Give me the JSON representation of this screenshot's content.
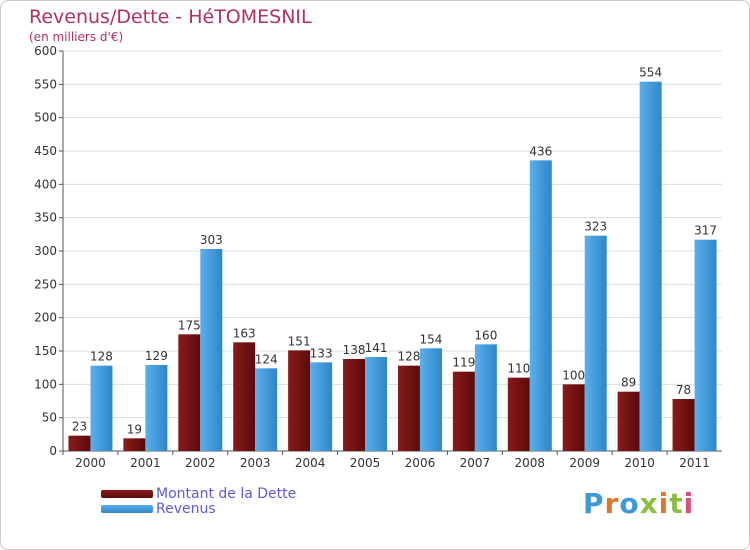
{
  "chart_data": {
    "type": "bar",
    "title": "Revenus/Dette - HéTOMESNIL",
    "subtitle": "(en milliers d'€)",
    "categories": [
      "2000",
      "2001",
      "2002",
      "2003",
      "2004",
      "2005",
      "2006",
      "2007",
      "2008",
      "2009",
      "2010",
      "2011"
    ],
    "series": [
      {
        "name": "Montant de la Dette",
        "color": "#7a1414",
        "values": [
          23,
          19,
          175,
          163,
          151,
          138,
          128,
          119,
          110,
          100,
          89,
          78
        ]
      },
      {
        "name": "Revenus",
        "color": "#4ea6e6",
        "values": [
          128,
          129,
          303,
          124,
          133,
          141,
          154,
          160,
          436,
          323,
          554,
          317
        ]
      }
    ],
    "ylim": [
      0,
      600
    ],
    "yticks": [
      0,
      50,
      100,
      150,
      200,
      250,
      300,
      350,
      400,
      450,
      500,
      550,
      600
    ],
    "grid": true,
    "legend_position": "bottom-left"
  },
  "branding": {
    "logo_text": "Proxiti",
    "logo_colors": [
      "#3d9ad8",
      "#e0762b",
      "#3d9ad8",
      "#8cbf3f",
      "#e0762b",
      "#8cbf3f",
      "#d94f7a"
    ]
  }
}
